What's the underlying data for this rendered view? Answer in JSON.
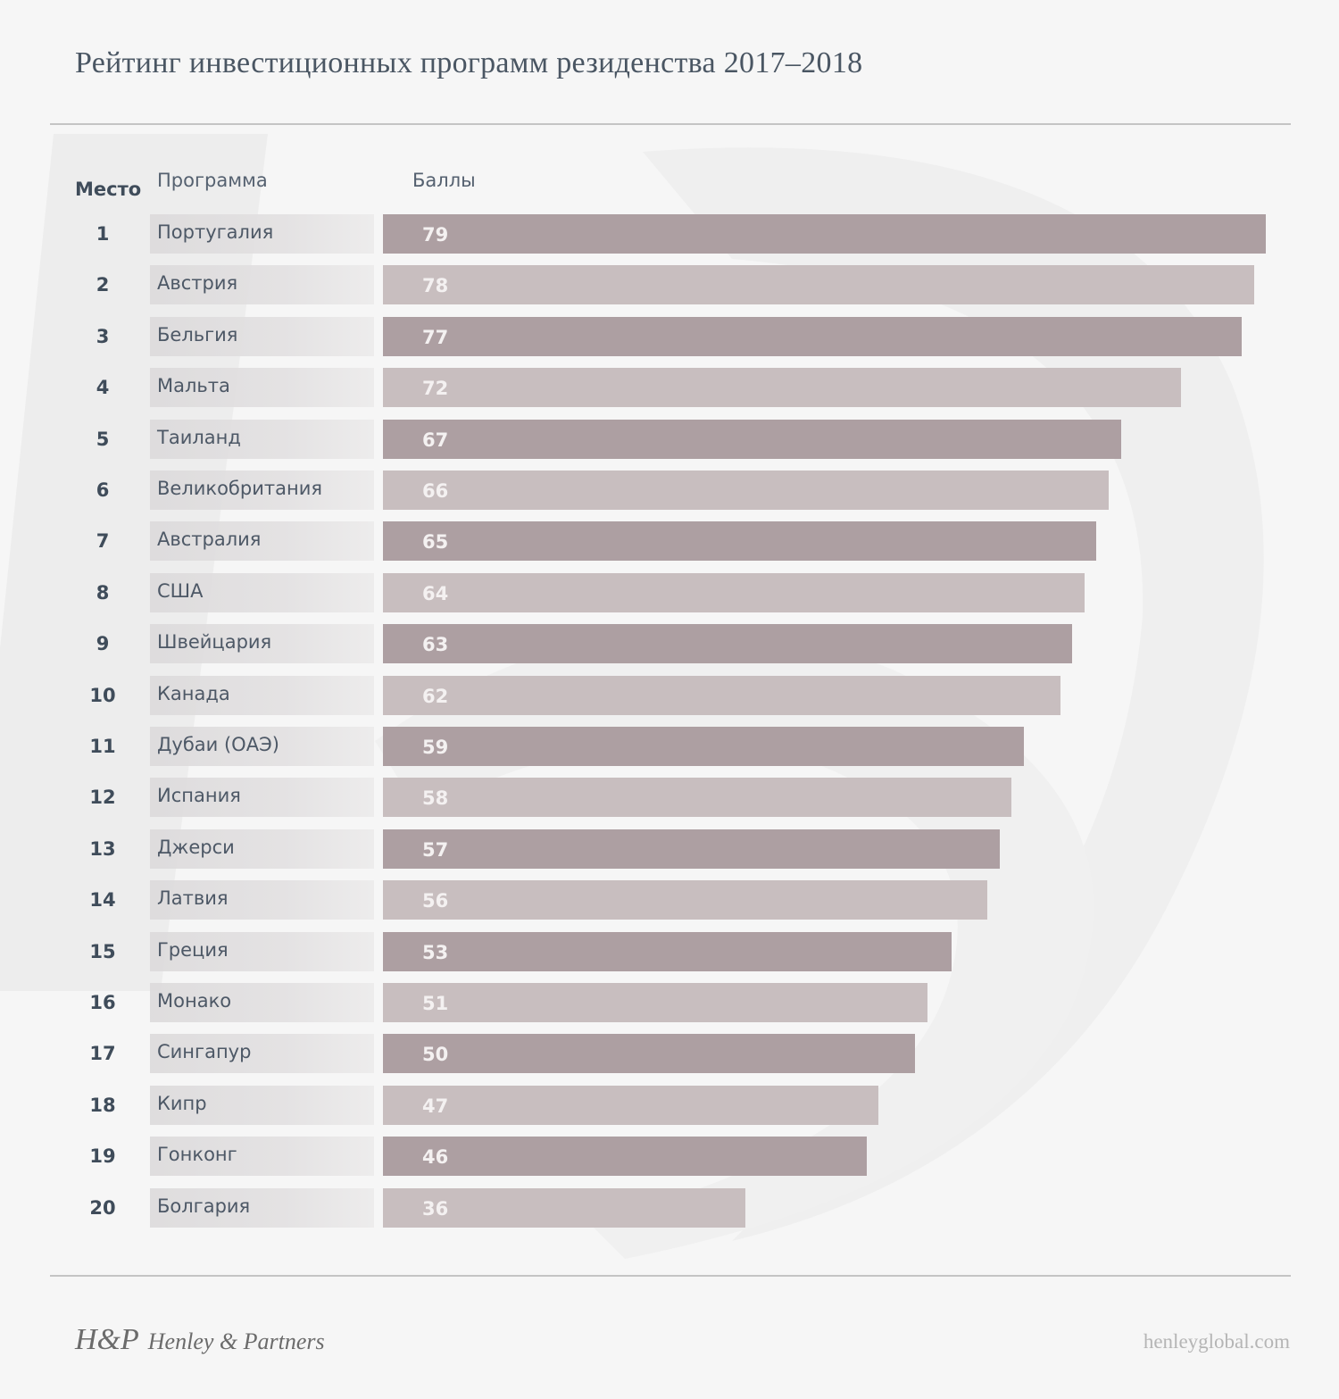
{
  "header": {
    "title": "Рейтинг инвестиционных программ резиденства 2017–2018"
  },
  "columns": {
    "rank": "Место",
    "program": "Программа",
    "score": "Баллы"
  },
  "colors": {
    "bar_dark": "#ad9fa2",
    "bar_light": "#c8bebf",
    "text": "#4a5663"
  },
  "chart_data": {
    "type": "bar",
    "orientation": "horizontal",
    "title": "Рейтинг инвестиционных программ резиденства 2017–2018",
    "xlabel": "Баллы",
    "ylabel": "Программа",
    "grid": false,
    "legend": "none",
    "categories": [
      "Португалия",
      "Австрия",
      "Бельгия",
      "Мальта",
      "Таиланд",
      "Великобритания",
      "Австралия",
      "США",
      "Швейцария",
      "Канада",
      "Дубаи (ОАЭ)",
      "Испания",
      "Джерси",
      "Латвия",
      "Греция",
      "Монако",
      "Сингапур",
      "Кипр",
      "Гонконг",
      "Болгария"
    ],
    "ranks": [
      "1",
      "2",
      "3",
      "4",
      "5",
      "6",
      "7",
      "8",
      "9",
      "10",
      "11",
      "12",
      "13",
      "14",
      "15",
      "16",
      "17",
      "18",
      "19",
      "20"
    ],
    "values": [
      79,
      78,
      77,
      72,
      67,
      66,
      65,
      64,
      63,
      62,
      59,
      58,
      57,
      56,
      53,
      51,
      50,
      47,
      46,
      36
    ]
  },
  "footer": {
    "logo_mark": "H&P",
    "brand": "Henley & Partners",
    "website": "henleyglobal.com"
  }
}
